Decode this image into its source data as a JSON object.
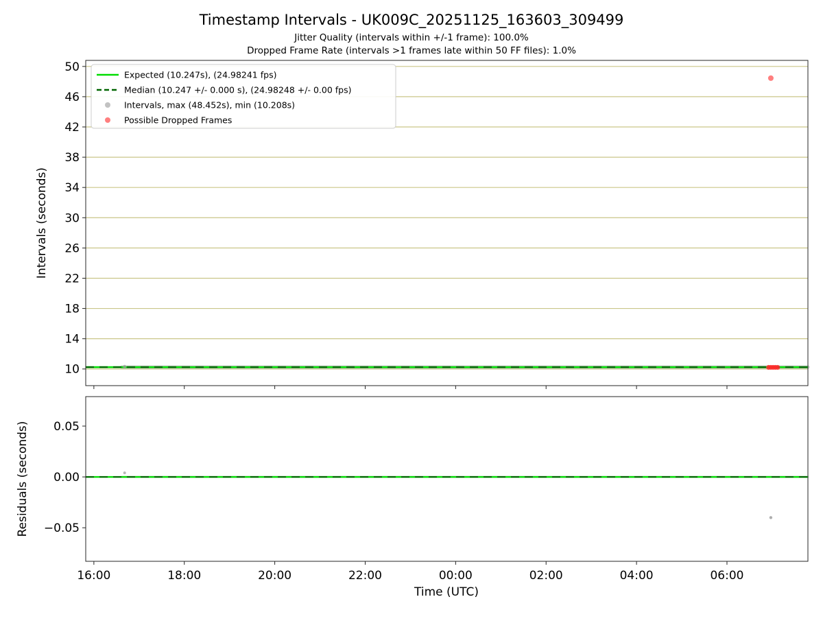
{
  "title": "Timestamp Intervals - UK009C_20251125_163603_309499",
  "subtitle1": "Jitter Quality (intervals within +/-1 frame): 100.0%",
  "subtitle2": "Dropped Frame Rate (intervals >1 frames late within 50 FF files): 1.0%",
  "colors": {
    "expected": "#00dd00",
    "median": "#006400",
    "intervals": "#9a9a9a",
    "dropped": "#ff2a2a",
    "grid": "#bdb76b",
    "axis": "#262626"
  },
  "xaxis": {
    "label": "Time (UTC)",
    "xlim": [
      15.82,
      31.79
    ],
    "ticks": [
      {
        "value": 16,
        "label": "16:00"
      },
      {
        "value": 18,
        "label": "18:00"
      },
      {
        "value": 20,
        "label": "20:00"
      },
      {
        "value": 22,
        "label": "22:00"
      },
      {
        "value": 24,
        "label": "00:00"
      },
      {
        "value": 26,
        "label": "02:00"
      },
      {
        "value": 28,
        "label": "04:00"
      },
      {
        "value": 30,
        "label": "06:00"
      }
    ]
  },
  "chart_data": [
    {
      "type": "scatter",
      "ylabel": "Intervals (seconds)",
      "ylim": [
        7.8,
        50.8
      ],
      "yticks": [
        10,
        14,
        18,
        22,
        26,
        30,
        34,
        38,
        42,
        46,
        50
      ],
      "tick_decimals": 0,
      "grid": true,
      "expected_interval_s": 10.247,
      "expected_fps": 24.98241,
      "median_interval_s": 10.247,
      "median_interval_err_s": 0.0,
      "median_fps": 24.98248,
      "median_fps_err": 0.0,
      "max_interval_s": 48.452,
      "min_interval_s": 10.208,
      "lines": [
        {
          "name": "expected-line",
          "y": 10.247,
          "color_key": "expected",
          "style": "solid",
          "width": 2.6
        },
        {
          "name": "median-line",
          "y": 10.247,
          "color_key": "median",
          "style": "dashed",
          "width": 2.2
        }
      ],
      "band": {
        "name": "intervals-scatter-band",
        "y": 10.247,
        "x_start": 16.62,
        "x_end": 31.79,
        "width": 5,
        "color_key": "intervals",
        "opacity": 0.5
      },
      "points": [
        {
          "name": "dropped-frame-outlier",
          "x": 30.97,
          "y": 48.452,
          "r": 4,
          "color_key": "dropped",
          "opacity": 0.6
        },
        {
          "name": "dropped-frame-cluster-point",
          "x": 30.92,
          "y": 10.21,
          "r": 3.5,
          "color_key": "dropped",
          "opacity": 0.85
        },
        {
          "name": "dropped-frame-cluster-point",
          "x": 30.97,
          "y": 10.21,
          "r": 3.5,
          "color_key": "dropped",
          "opacity": 0.85
        },
        {
          "name": "dropped-frame-cluster-point",
          "x": 31.02,
          "y": 10.21,
          "r": 3.5,
          "color_key": "dropped",
          "opacity": 0.85
        },
        {
          "name": "dropped-frame-cluster-point",
          "x": 31.07,
          "y": 10.21,
          "r": 3.5,
          "color_key": "dropped",
          "opacity": 0.85
        },
        {
          "name": "dropped-frame-cluster-point",
          "x": 31.12,
          "y": 10.21,
          "r": 3.5,
          "color_key": "dropped",
          "opacity": 0.85
        },
        {
          "name": "interval-start-marker",
          "x": 16.68,
          "y": 10.32,
          "r": 2.5,
          "color_key": "intervals",
          "opacity": 0.7
        }
      ],
      "legend": [
        {
          "label": "Expected (10.247s), (24.98241 fps)",
          "glyph": "line",
          "color_key": "expected"
        },
        {
          "label": "Median (10.247 +/- 0.000 s), (24.98248 +/- 0.00 fps)",
          "glyph": "dashed-line",
          "color_key": "median"
        },
        {
          "label": "Intervals, max (48.452s), min (10.208s)",
          "glyph": "dot",
          "color_key": "intervals"
        },
        {
          "label": "Possible Dropped Frames",
          "glyph": "dot",
          "color_key": "dropped"
        }
      ]
    },
    {
      "type": "scatter",
      "ylabel": "Residuals (seconds)",
      "ylim": [
        -0.083,
        0.079
      ],
      "yticks": [
        -0.05,
        0,
        0.05
      ],
      "tick_decimals": 2,
      "grid": false,
      "lines": [
        {
          "name": "expected-residual-line",
          "y": 0,
          "color_key": "expected",
          "style": "solid",
          "width": 2.4
        },
        {
          "name": "median-residual-line",
          "y": 0,
          "color_key": "median",
          "style": "dashed",
          "width": 2.0
        }
      ],
      "band": {
        "name": "residuals-scatter-band",
        "y": 0,
        "x_start": 16.62,
        "x_end": 31.79,
        "width": 3,
        "color_key": "intervals",
        "opacity": 0.45
      },
      "points": [
        {
          "name": "residual-outlier",
          "x": 30.97,
          "y": -0.04,
          "r": 2.2,
          "color_key": "intervals",
          "opacity": 0.8
        },
        {
          "name": "residual-start-marker",
          "x": 16.68,
          "y": 0.004,
          "r": 2,
          "color_key": "intervals",
          "opacity": 0.7
        }
      ]
    }
  ]
}
